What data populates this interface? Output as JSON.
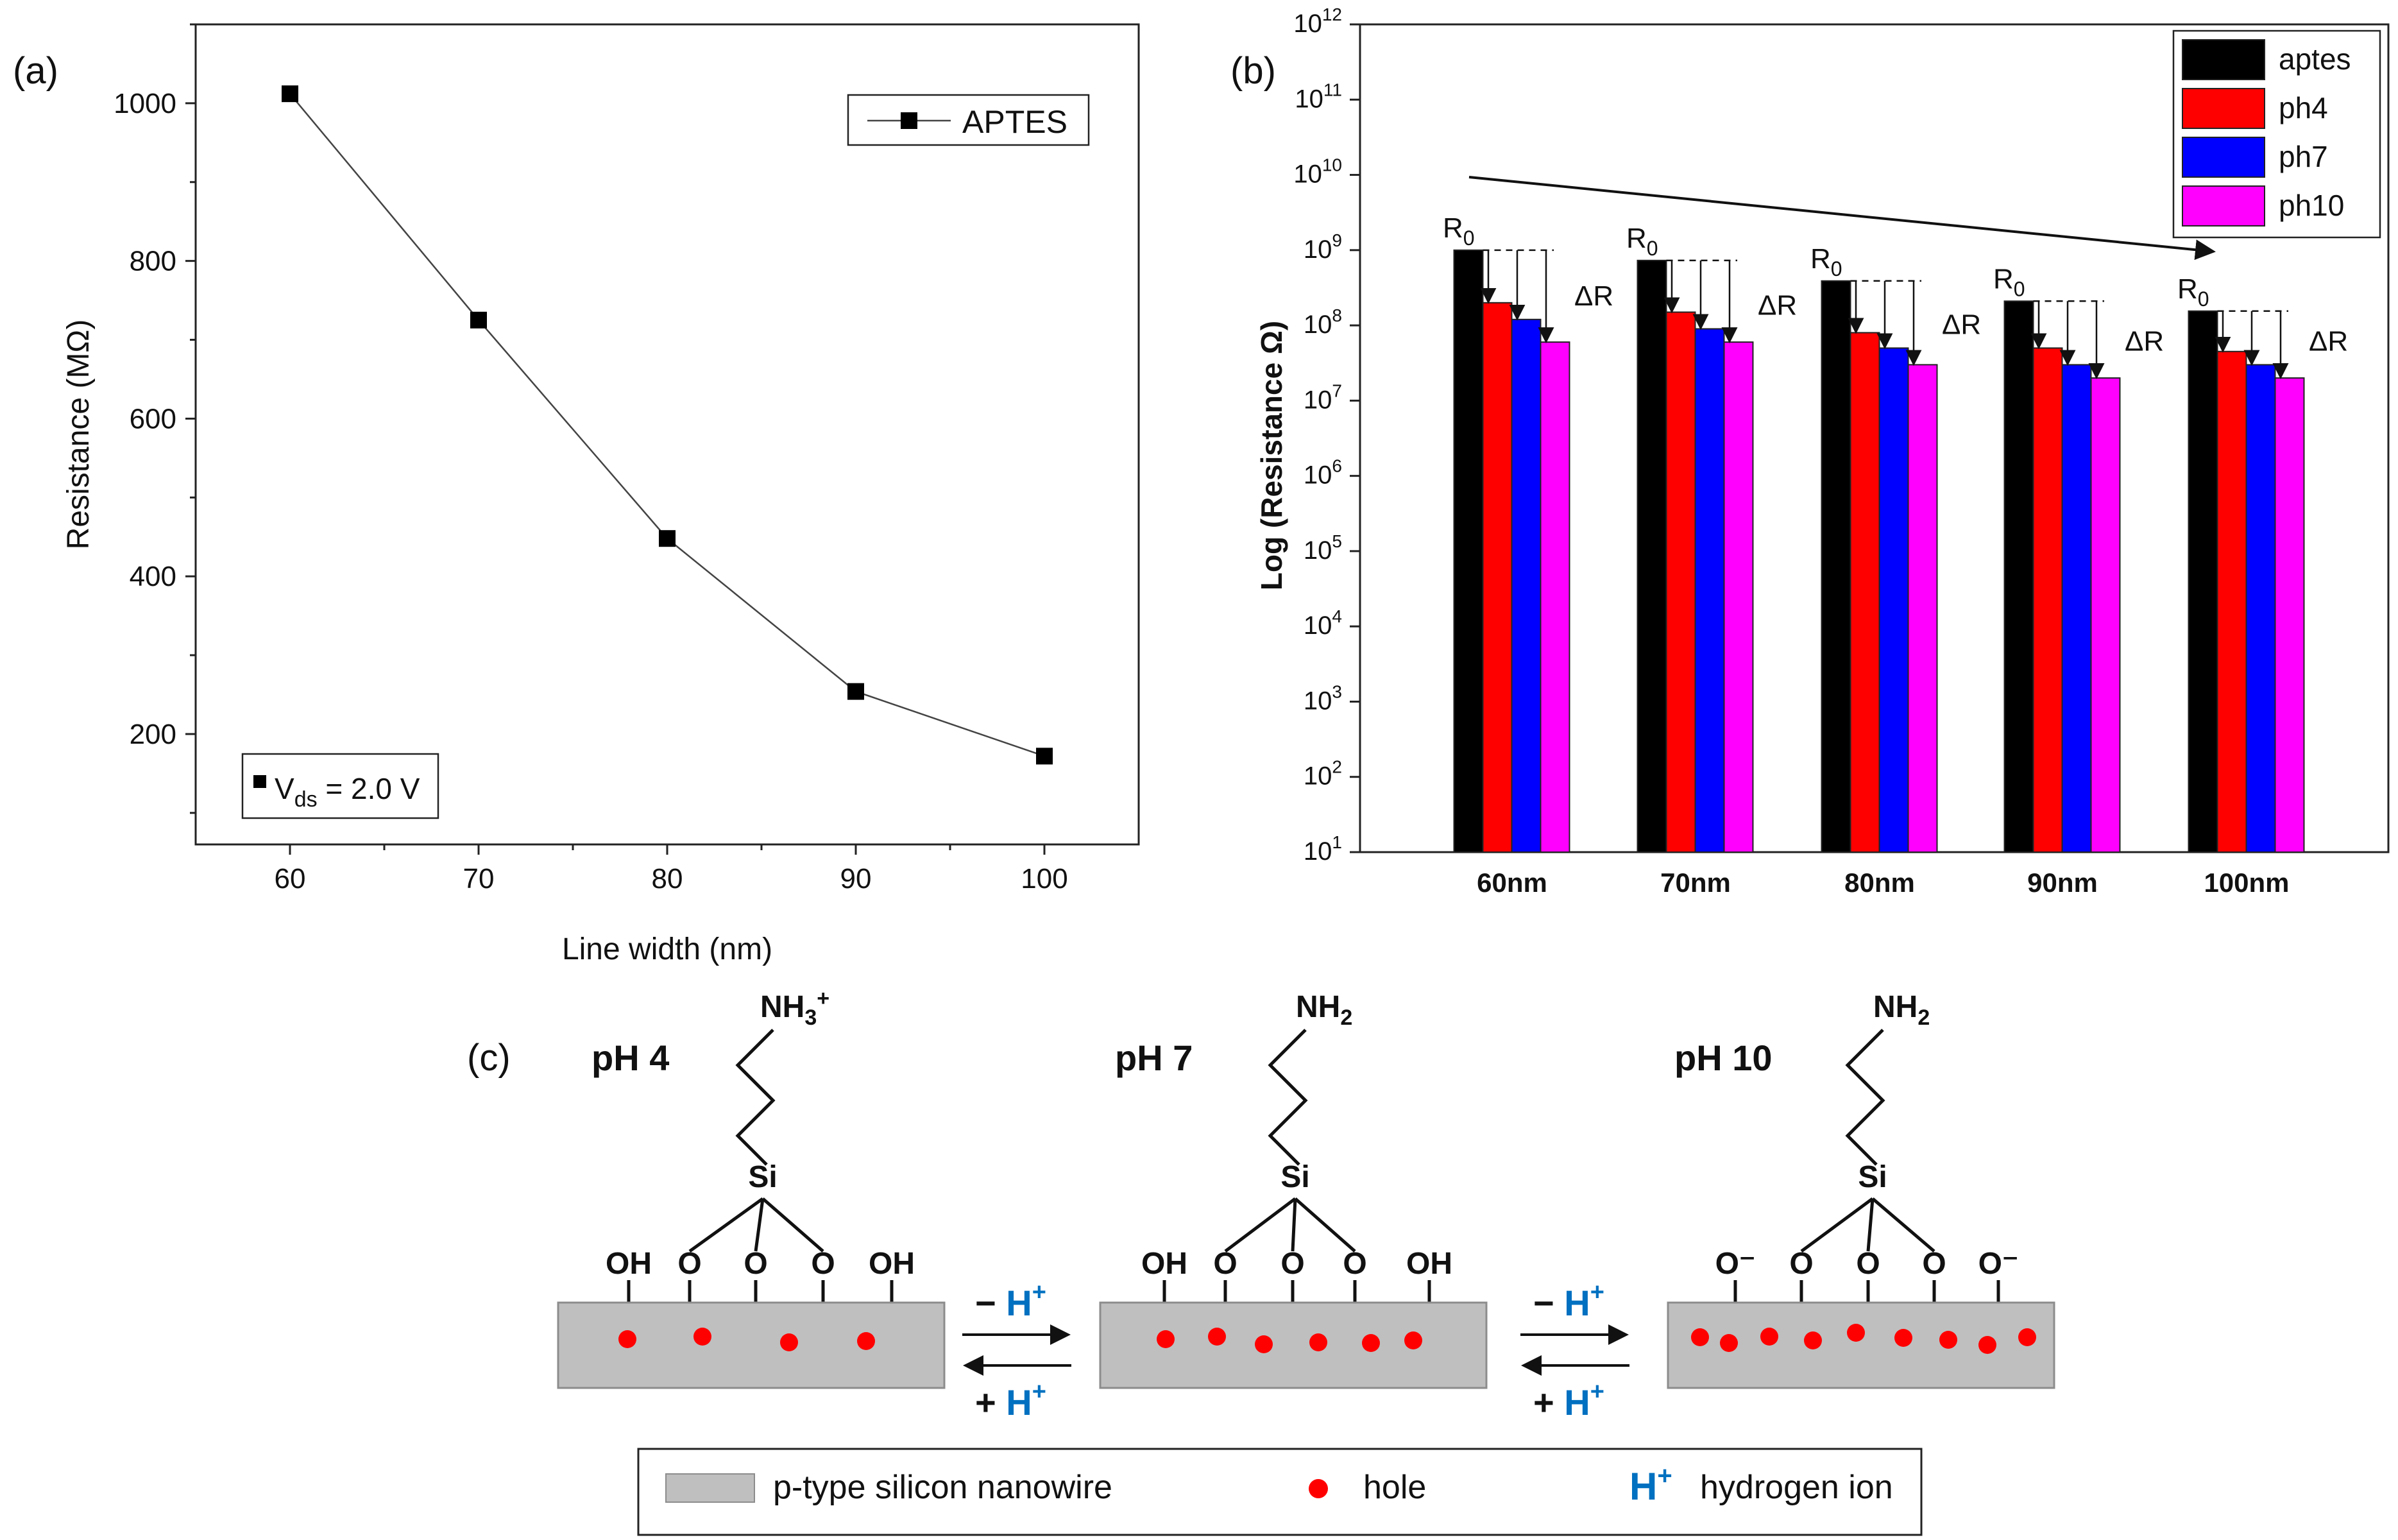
{
  "panels": {
    "a": "(a)",
    "b": "(b)",
    "c": "(c)"
  },
  "chart_data": [
    {
      "type": "line",
      "title": "",
      "xlabel": "Line width (nm)",
      "ylabel": "Resistance (MΩ)",
      "xlim": [
        55,
        105
      ],
      "ylim": [
        60,
        1100
      ],
      "x_ticks": [
        60,
        70,
        80,
        90,
        100
      ],
      "y_ticks": [
        200,
        400,
        600,
        800,
        1000
      ],
      "series": [
        {
          "name": "APTES",
          "x": [
            60,
            70,
            80,
            90,
            100
          ],
          "values": [
            1012,
            725,
            448,
            254,
            172
          ]
        }
      ],
      "legend": "top-right",
      "annotation": {
        "main": "V",
        "sub": "ds",
        "rest": " = 2.0 V",
        "position": "bottom-left"
      }
    },
    {
      "type": "bar",
      "title": "",
      "xlabel": "",
      "ylabel": "Log (Resistance Ω)",
      "scale": "log",
      "ylim_exp": [
        1,
        12
      ],
      "categories": [
        "60nm",
        "70nm",
        "80nm",
        "90nm",
        "100nm"
      ],
      "series": [
        {
          "name": "aptes",
          "color": "#000000",
          "values": [
            1000000000.0,
            730000000.0,
            390000000.0,
            210000000.0,
            155000000.0
          ]
        },
        {
          "name": "ph4",
          "color": "#ff0000",
          "values": [
            200000000.0,
            150000000.0,
            80000000.0,
            50000000.0,
            45000000.0
          ]
        },
        {
          "name": "ph7",
          "color": "#0000ff",
          "values": [
            120000000.0,
            90000000.0,
            50000000.0,
            30000000.0,
            30000000.0
          ]
        },
        {
          "name": "ph10",
          "color": "#ff00ff",
          "values": [
            60000000.0,
            60000000.0,
            30000000.0,
            20000000.0,
            20000000.0
          ]
        }
      ],
      "legend": "top-right",
      "annotations": {
        "r0": "R",
        "r0_sub": "0",
        "delta": "ΔR"
      }
    }
  ],
  "diagram": {
    "states": [
      {
        "ph": "pH 4",
        "amine": "NH",
        "amine_sub": "3",
        "amine_sup": "+",
        "si": "Si",
        "groups": [
          "OH",
          "O",
          "O",
          "O",
          "OH"
        ],
        "holes": 4
      },
      {
        "ph": "pH 7",
        "amine": "NH",
        "amine_sub": "2",
        "amine_sup": "",
        "si": "Si",
        "groups": [
          "OH",
          "O",
          "O",
          "O",
          "OH"
        ],
        "holes": 6
      },
      {
        "ph": "pH 10",
        "amine": "NH",
        "amine_sub": "2",
        "amine_sup": "",
        "si": "Si",
        "groups": [
          "O⁻",
          "O",
          "O",
          "O",
          "O⁻"
        ],
        "holes": 9
      }
    ],
    "transitions": [
      {
        "forward_sign": "−",
        "reverse_sign": "+",
        "ion": "H",
        "ion_sup": "+"
      },
      {
        "forward_sign": "−",
        "reverse_sign": "+",
        "ion": "H",
        "ion_sup": "+"
      }
    ],
    "legend": {
      "nanowire": "p-type silicon nanowire",
      "hole": "hole",
      "ion": "H",
      "ion_sup": "+",
      "ion_label": "hydrogen ion"
    }
  },
  "colors": {
    "hole": "#ff0000",
    "ion": "#0070c0",
    "wire": "#bfbfbf"
  }
}
